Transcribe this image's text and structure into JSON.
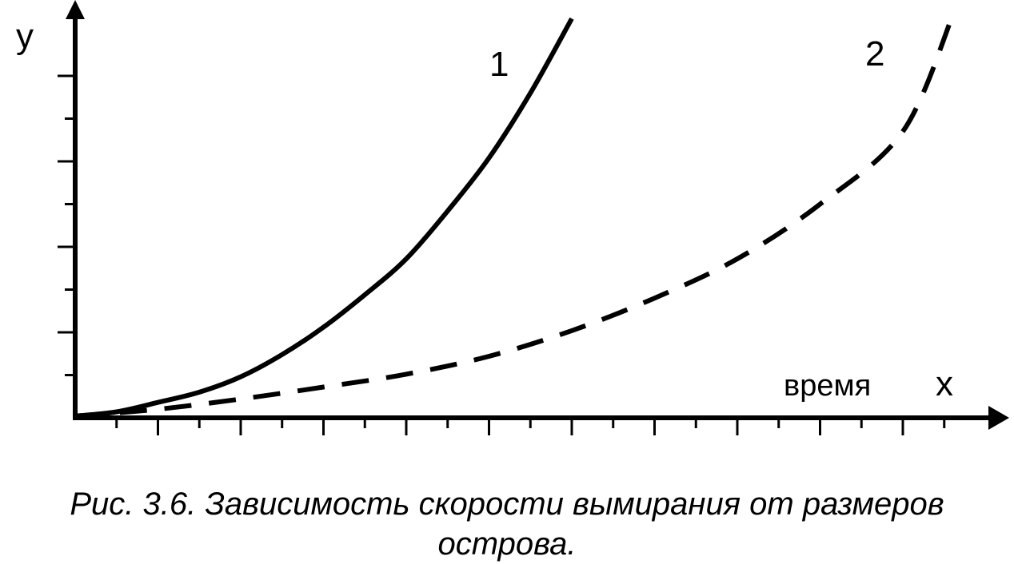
{
  "caption": {
    "line1": "Рис. 3.6. Зависимость скорости вымирания от размеров",
    "line2": "острова."
  },
  "chart_data": {
    "type": "line",
    "xlabel": "x",
    "ylabel": "y",
    "annotation": "время",
    "xlim": [
      0,
      11
    ],
    "ylim": [
      0,
      4.4
    ],
    "x_ticks_major": [
      1,
      2,
      3,
      4,
      5,
      6,
      7,
      8,
      9,
      10
    ],
    "y_ticks_major": [
      1,
      2,
      3,
      4
    ],
    "grid": false,
    "series": [
      {
        "name": "1",
        "style": "solid",
        "color": "#000000",
        "points": [
          [
            0,
            0.02
          ],
          [
            0.5,
            0.07
          ],
          [
            1,
            0.18
          ],
          [
            1.5,
            0.3
          ],
          [
            2,
            0.48
          ],
          [
            2.5,
            0.74
          ],
          [
            3,
            1.06
          ],
          [
            3.5,
            1.44
          ],
          [
            4,
            1.86
          ],
          [
            4.5,
            2.42
          ],
          [
            5,
            3.04
          ],
          [
            5.5,
            3.8
          ],
          [
            6,
            4.67
          ]
        ]
      },
      {
        "name": "2",
        "style": "dashed",
        "color": "#000000",
        "points": [
          [
            0,
            0.02
          ],
          [
            1,
            0.1
          ],
          [
            2,
            0.22
          ],
          [
            3,
            0.36
          ],
          [
            4,
            0.51
          ],
          [
            5,
            0.72
          ],
          [
            6,
            1.02
          ],
          [
            7,
            1.4
          ],
          [
            8,
            1.86
          ],
          [
            9,
            2.5
          ],
          [
            10,
            3.35
          ],
          [
            10.6,
            4.7
          ]
        ]
      }
    ]
  }
}
